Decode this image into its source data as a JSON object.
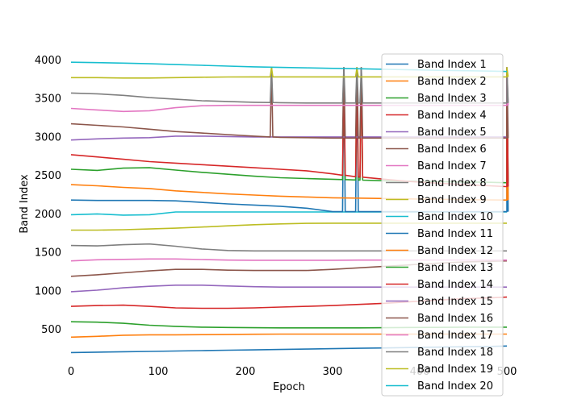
{
  "chart_data": {
    "type": "line",
    "title": "",
    "xlabel": "Epoch",
    "ylabel": "Band Index",
    "xlim": [
      0,
      500
    ],
    "ylim": [
      110,
      4150
    ],
    "xticks": [
      0,
      100,
      200,
      300,
      400,
      500
    ],
    "yticks": [
      500,
      1000,
      1500,
      2000,
      2500,
      3000,
      3500,
      4000
    ],
    "grid": false,
    "legend_position": "right",
    "x": [
      0,
      30,
      60,
      90,
      120,
      150,
      180,
      210,
      240,
      270,
      300,
      330,
      360,
      390,
      420,
      450,
      480,
      500
    ],
    "series": [
      {
        "name": "Band Index 1",
        "color": "#1f77b4",
        "values": [
          200,
          205,
          210,
          215,
          220,
          225,
          230,
          235,
          240,
          245,
          250,
          255,
          260,
          265,
          270,
          275,
          280,
          285
        ]
      },
      {
        "name": "Band Index 2",
        "color": "#ff7f0e",
        "values": [
          400,
          410,
          425,
          430,
          430,
          432,
          435,
          438,
          440,
          440,
          440,
          440,
          440,
          440,
          440,
          440,
          440,
          440
        ]
      },
      {
        "name": "Band Index 3",
        "color": "#2ca02c",
        "values": [
          600,
          595,
          580,
          555,
          540,
          530,
          525,
          522,
          520,
          520,
          520,
          520,
          522,
          525,
          527,
          530,
          530,
          530
        ]
      },
      {
        "name": "Band Index 4",
        "color": "#d62728",
        "values": [
          800,
          810,
          815,
          800,
          780,
          775,
          775,
          780,
          790,
          800,
          810,
          825,
          840,
          860,
          880,
          900,
          910,
          920
        ]
      },
      {
        "name": "Band Index 5",
        "color": "#9467bd",
        "values": [
          990,
          1010,
          1040,
          1060,
          1075,
          1075,
          1065,
          1055,
          1050,
          1050,
          1050,
          1050,
          1050,
          1050,
          1050,
          1050,
          1050,
          1050
        ]
      },
      {
        "name": "Band Index 6",
        "color": "#8c564b",
        "values": [
          1190,
          1210,
          1235,
          1260,
          1280,
          1280,
          1270,
          1265,
          1265,
          1265,
          1280,
          1300,
          1320,
          1340,
          1360,
          1375,
          1385,
          1390
        ]
      },
      {
        "name": "Band Index 7",
        "color": "#e377c2",
        "values": [
          1390,
          1405,
          1410,
          1415,
          1415,
          1408,
          1400,
          1398,
          1398,
          1398,
          1398,
          1400,
          1400,
          1400,
          1400,
          1400,
          1400,
          1400
        ]
      },
      {
        "name": "Band Index 8",
        "color": "#7f7f7f",
        "values": [
          1590,
          1585,
          1600,
          1610,
          1580,
          1545,
          1525,
          1520,
          1520,
          1520,
          1520,
          1520,
          1520,
          1520,
          1520,
          1520,
          1520,
          1520
        ]
      },
      {
        "name": "Band Index 9",
        "color": "#bcbd22",
        "values": [
          1790,
          1790,
          1795,
          1805,
          1815,
          1830,
          1845,
          1860,
          1870,
          1878,
          1880,
          1880,
          1880,
          1880,
          1880,
          1880,
          1880,
          1880
        ]
      },
      {
        "name": "Band Index 10",
        "color": "#17becf",
        "values": [
          1990,
          2000,
          1985,
          1990,
          2025,
          2025,
          2025,
          2025,
          2025,
          2025,
          2025,
          2025,
          2025,
          2025,
          2025,
          2025,
          2025,
          2025
        ]
      },
      {
        "name": "Band Index 11",
        "color": "#1f77b4",
        "values": [
          2180,
          2175,
          2175,
          2175,
          2170,
          2150,
          2130,
          2115,
          2100,
          2075,
          2030,
          2030,
          2030,
          2030,
          2030,
          2030,
          2030,
          2030
        ]
      },
      {
        "name": "Band Index 12",
        "color": "#ff7f0e",
        "values": [
          2380,
          2365,
          2345,
          2330,
          2300,
          2280,
          2260,
          2245,
          2230,
          2220,
          2210,
          2205,
          2200,
          2195,
          2190,
          2185,
          2182,
          2180
        ]
      },
      {
        "name": "Band Index 13",
        "color": "#2ca02c",
        "values": [
          2580,
          2565,
          2595,
          2600,
          2570,
          2540,
          2515,
          2490,
          2470,
          2460,
          2450,
          2440,
          2430,
          2425,
          2420,
          2415,
          2410,
          2405
        ]
      },
      {
        "name": "Band Index 14",
        "color": "#d62728",
        "values": [
          2770,
          2740,
          2710,
          2680,
          2660,
          2640,
          2620,
          2600,
          2580,
          2560,
          2520,
          2480,
          2450,
          2420,
          2400,
          2380,
          2365,
          2355
        ]
      },
      {
        "name": "Band Index 15",
        "color": "#9467bd",
        "values": [
          2960,
          2975,
          2985,
          2990,
          3010,
          3010,
          3005,
          3000,
          3000,
          3000,
          3000,
          3000,
          3000,
          3000,
          3000,
          3000,
          3000,
          3000
        ]
      },
      {
        "name": "Band Index 16",
        "color": "#8c564b",
        "values": [
          3170,
          3150,
          3130,
          3100,
          3070,
          3050,
          3030,
          3010,
          2995,
          2990,
          2985,
          2985,
          2985,
          2985,
          2985,
          2985,
          2985,
          2985
        ]
      },
      {
        "name": "Band Index 17",
        "color": "#e377c2",
        "values": [
          3370,
          3350,
          3330,
          3340,
          3380,
          3405,
          3410,
          3410,
          3410,
          3410,
          3410,
          3410,
          3410,
          3410,
          3410,
          3410,
          3410,
          3410
        ]
      },
      {
        "name": "Band Index 18",
        "color": "#7f7f7f",
        "values": [
          3570,
          3560,
          3540,
          3510,
          3490,
          3470,
          3460,
          3450,
          3445,
          3440,
          3440,
          3440,
          3440,
          3440,
          3440,
          3440,
          3440,
          3440
        ]
      },
      {
        "name": "Band Index 19",
        "color": "#bcbd22",
        "values": [
          3770,
          3770,
          3765,
          3765,
          3770,
          3775,
          3778,
          3780,
          3780,
          3780,
          3780,
          3780,
          3780,
          3780,
          3780,
          3780,
          3780,
          3780
        ]
      },
      {
        "name": "Band Index 20",
        "color": "#17becf",
        "values": [
          3970,
          3965,
          3958,
          3950,
          3940,
          3930,
          3920,
          3910,
          3903,
          3897,
          3890,
          3885,
          3878,
          3872,
          3865,
          3860,
          3855,
          3850
        ]
      }
    ],
    "spikes": [
      {
        "x": 230,
        "series": [
          "Band Index 16",
          "Band Index 18",
          "Band Index 19"
        ],
        "value": 3900
      },
      {
        "x": 313,
        "series": [
          "Band Index 11",
          "Band Index 13",
          "Band Index 14",
          "Band Index 16",
          "Band Index 18"
        ],
        "value": 3900
      },
      {
        "x": 328,
        "series": [
          "Band Index 11",
          "Band Index 13",
          "Band Index 14",
          "Band Index 16",
          "Band Index 18",
          "Band Index 19"
        ],
        "value": 3900
      },
      {
        "x": 333,
        "series": [
          "Band Index 13",
          "Band Index 14",
          "Band Index 16",
          "Band Index 18"
        ],
        "value": 3900
      },
      {
        "x": 500,
        "series": [
          "Band Index 11",
          "Band Index 12",
          "Band Index 13",
          "Band Index 14",
          "Band Index 16",
          "Band Index 17",
          "Band Index 18",
          "Band Index 19"
        ],
        "value": 3900
      }
    ]
  }
}
